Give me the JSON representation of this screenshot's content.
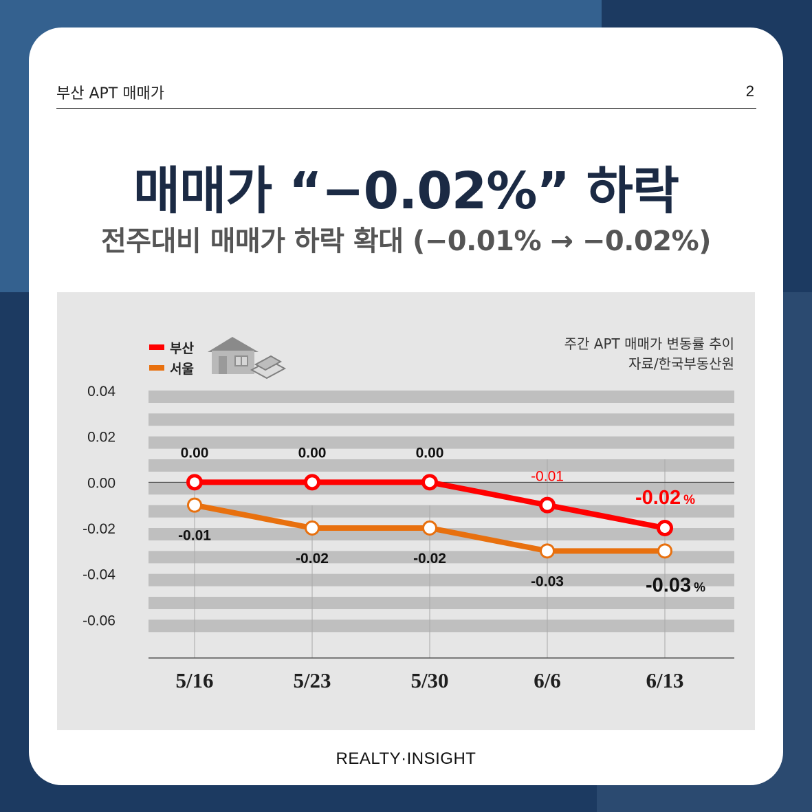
{
  "header": {
    "title": "부산 APT 매매가",
    "page_number": "2"
  },
  "headline": "매매가 “−0.02%” 하락",
  "subtitle": "전주대비 매매가 하락 확대 (−0.01% → −0.02%)",
  "chart_note": {
    "line1": "주간 APT 매매가 변동률 추이",
    "line2": "자료/한국부동산원"
  },
  "legend": [
    {
      "label": "부산",
      "color": "#ff0000"
    },
    {
      "label": "서울",
      "color": "#e8700e"
    }
  ],
  "footer": {
    "brand": "REALTY·INSIGHT"
  },
  "colors": {
    "navy": "#1c3a61",
    "blue": "#34618f",
    "busan": "#ff0000",
    "seoul": "#e8700e"
  },
  "chart_data": {
    "type": "line",
    "categories": [
      "5/16",
      "5/23",
      "5/30",
      "6/6",
      "6/13"
    ],
    "ylim": [
      -0.06,
      0.04
    ],
    "yticks": [
      "0.04",
      "0.02",
      "0.00",
      "-0.02",
      "-0.04",
      "-0.06"
    ],
    "legend_position": "top-left",
    "series": [
      {
        "name": "부산",
        "color": "#ff0000",
        "values": [
          0.0,
          0.0,
          0.0,
          -0.01,
          -0.02
        ],
        "labels": [
          "0.00",
          "0.00",
          "0.00",
          "-0.01",
          "-0.02"
        ],
        "unit": "%"
      },
      {
        "name": "서울",
        "color": "#e8700e",
        "values": [
          -0.01,
          -0.02,
          -0.02,
          -0.03,
          -0.03
        ],
        "labels": [
          "-0.01",
          "-0.02",
          "-0.02",
          "-0.03",
          "-0.03"
        ],
        "unit": "%"
      }
    ]
  }
}
